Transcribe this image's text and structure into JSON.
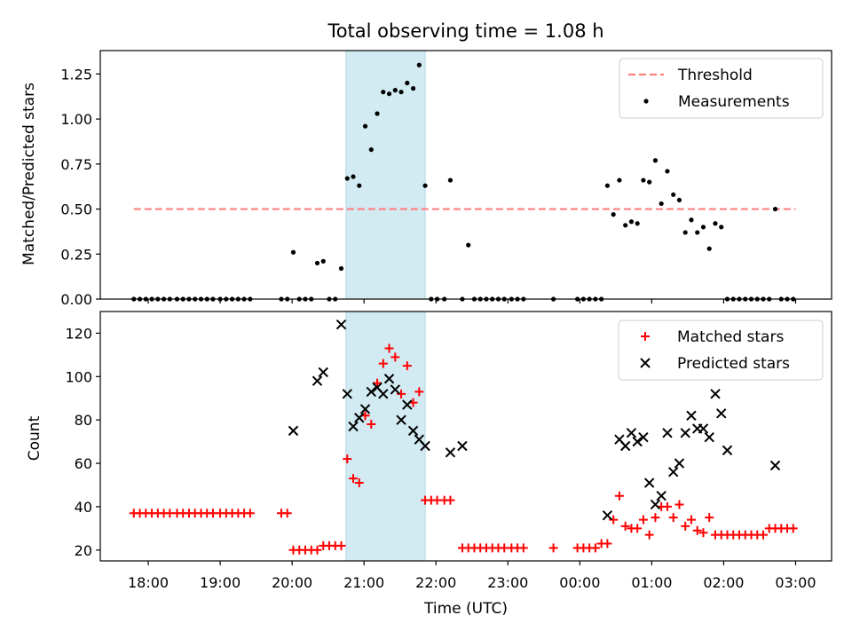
{
  "chart_data": [
    {
      "type": "scatter",
      "title": "Total observing time = 1.08 h",
      "xlabel": "",
      "ylabel": "Matched/Predicted stars",
      "xlim": [
        "17:20",
        "03:30"
      ],
      "ylim": [
        0,
        1.38
      ],
      "x_ticks": [
        "18:00",
        "19:00",
        "20:00",
        "21:00",
        "22:00",
        "23:00",
        "00:00",
        "01:00",
        "02:00",
        "03:00"
      ],
      "y_ticks": [
        "0.00",
        "0.25",
        "0.50",
        "0.75",
        "1.00",
        "1.25"
      ],
      "y_tick_values": [
        0,
        0.25,
        0.5,
        0.75,
        1.0,
        1.25
      ],
      "shaded_interval": {
        "start": "20:45",
        "end": "21:51",
        "color": "#add8e6"
      },
      "threshold": {
        "name": "Threshold",
        "value": 0.5,
        "x_start": "17:48",
        "x_end": "03:00",
        "color": "#ff7f7f",
        "style": "dashed"
      },
      "legend_position": "upper right",
      "series": [
        {
          "name": "Measurements",
          "color": "#000000",
          "marker": "dot",
          "x": [
            "17:48",
            "17:53",
            "17:58",
            "18:03",
            "18:08",
            "18:13",
            "18:18",
            "18:24",
            "18:29",
            "18:34",
            "18:39",
            "18:44",
            "18:49",
            "18:54",
            "19:00",
            "19:05",
            "19:10",
            "19:15",
            "19:20",
            "19:25",
            "19:51",
            "19:56",
            "20:01",
            "20:06",
            "20:11",
            "20:16",
            "20:21",
            "20:26",
            "20:31",
            "20:36",
            "20:41",
            "20:46",
            "20:51",
            "20:56",
            "21:01",
            "21:06",
            "21:11",
            "21:16",
            "21:21",
            "21:26",
            "21:31",
            "21:36",
            "21:41",
            "21:46",
            "21:51",
            "21:56",
            "22:01",
            "22:07",
            "22:12",
            "22:22",
            "22:27",
            "22:32",
            "22:37",
            "22:42",
            "22:47",
            "22:52",
            "22:57",
            "23:03",
            "23:08",
            "23:13",
            "23:38",
            "23:58",
            "00:03",
            "00:08",
            "00:13",
            "00:18",
            "00:23",
            "00:28",
            "00:33",
            "00:38",
            "00:43",
            "00:48",
            "00:53",
            "00:58",
            "01:03",
            "01:08",
            "01:13",
            "01:18",
            "01:23",
            "01:28",
            "01:33",
            "01:38",
            "01:43",
            "01:48",
            "01:53",
            "01:58",
            "02:03",
            "02:08",
            "02:13",
            "02:18",
            "02:23",
            "02:28",
            "02:33",
            "02:38",
            "02:43",
            "02:48",
            "02:53",
            "02:58"
          ],
          "y": [
            0,
            0,
            0,
            0,
            0,
            0,
            0,
            0,
            0,
            0,
            0,
            0,
            0,
            0,
            0,
            0,
            0,
            0,
            0,
            0,
            0,
            0,
            0.26,
            0,
            0,
            0,
            0.2,
            0.21,
            0,
            0,
            0.17,
            0.67,
            0.68,
            0.63,
            0.96,
            0.83,
            1.03,
            1.15,
            1.14,
            1.16,
            1.15,
            1.2,
            1.17,
            1.3,
            0.63,
            0,
            0,
            0,
            0.66,
            0,
            0.3,
            0,
            0,
            0,
            0,
            0,
            0,
            0,
            0,
            0,
            0,
            0,
            0,
            0,
            0,
            0,
            0.63,
            0.47,
            0.66,
            0.41,
            0.43,
            0.42,
            0.66,
            0.65,
            0.77,
            0.53,
            0.71,
            0.58,
            0.55,
            0.37,
            0.44,
            0.37,
            0.4,
            0.28,
            0.42,
            0.4,
            0,
            0,
            0,
            0,
            0,
            0,
            0,
            0,
            0.5,
            0,
            0,
            0
          ]
        }
      ]
    },
    {
      "type": "scatter",
      "title": "",
      "xlabel": "Time (UTC)",
      "ylabel": "Count",
      "xlim": [
        "17:20",
        "03:30"
      ],
      "ylim": [
        15,
        130
      ],
      "x_ticks": [
        "18:00",
        "19:00",
        "20:00",
        "21:00",
        "22:00",
        "23:00",
        "00:00",
        "01:00",
        "02:00",
        "03:00"
      ],
      "y_ticks": [
        "20",
        "40",
        "60",
        "80",
        "100",
        "120"
      ],
      "y_tick_values": [
        20,
        40,
        60,
        80,
        100,
        120
      ],
      "shaded_interval": {
        "start": "20:45",
        "end": "21:51",
        "color": "#add8e6"
      },
      "legend_position": "upper right",
      "series": [
        {
          "name": "Matched stars",
          "color": "#ff0000",
          "marker": "plus",
          "x": [
            "17:48",
            "17:53",
            "17:58",
            "18:03",
            "18:08",
            "18:13",
            "18:18",
            "18:24",
            "18:29",
            "18:34",
            "18:39",
            "18:44",
            "18:49",
            "18:54",
            "19:00",
            "19:05",
            "19:10",
            "19:15",
            "19:20",
            "19:25",
            "19:51",
            "19:56",
            "20:01",
            "20:06",
            "20:11",
            "20:16",
            "20:21",
            "20:26",
            "20:31",
            "20:36",
            "20:41",
            "20:46",
            "20:51",
            "20:56",
            "21:01",
            "21:06",
            "21:11",
            "21:16",
            "21:21",
            "21:26",
            "21:31",
            "21:36",
            "21:41",
            "21:46",
            "21:51",
            "21:56",
            "22:01",
            "22:07",
            "22:12",
            "22:22",
            "22:27",
            "22:32",
            "22:37",
            "22:42",
            "22:47",
            "22:52",
            "22:57",
            "23:03",
            "23:08",
            "23:13",
            "23:38",
            "23:58",
            "00:03",
            "00:08",
            "00:13",
            "00:18",
            "00:23",
            "00:28",
            "00:33",
            "00:38",
            "00:43",
            "00:48",
            "00:53",
            "00:58",
            "01:03",
            "01:08",
            "01:13",
            "01:18",
            "01:23",
            "01:28",
            "01:33",
            "01:38",
            "01:43",
            "01:48",
            "01:53",
            "01:58",
            "02:03",
            "02:08",
            "02:13",
            "02:18",
            "02:23",
            "02:28",
            "02:33",
            "02:38",
            "02:43",
            "02:48",
            "02:53",
            "02:58"
          ],
          "y": [
            37,
            37,
            37,
            37,
            37,
            37,
            37,
            37,
            37,
            37,
            37,
            37,
            37,
            37,
            37,
            37,
            37,
            37,
            37,
            37,
            37,
            37,
            20,
            20,
            20,
            20,
            20,
            22,
            22,
            22,
            22,
            62,
            53,
            51,
            82,
            78,
            97,
            106,
            113,
            109,
            92,
            105,
            88,
            93,
            43,
            43,
            43,
            43,
            43,
            21,
            21,
            21,
            21,
            21,
            21,
            21,
            21,
            21,
            21,
            21,
            21,
            21,
            21,
            21,
            21,
            23,
            23,
            34,
            45,
            31,
            30,
            30,
            34,
            27,
            35,
            40,
            40,
            35,
            41,
            31,
            34,
            29,
            28,
            35,
            27,
            27,
            27,
            27,
            27,
            27,
            27,
            27,
            27,
            30,
            30,
            30,
            30,
            30
          ]
        },
        {
          "name": "Predicted stars",
          "color": "#000000",
          "marker": "x",
          "x": [
            "20:01",
            "20:21",
            "20:26",
            "20:41",
            "20:46",
            "20:51",
            "20:56",
            "21:01",
            "21:06",
            "21:11",
            "21:16",
            "21:21",
            "21:26",
            "21:31",
            "21:36",
            "21:41",
            "21:46",
            "21:51",
            "22:12",
            "22:22",
            "00:23",
            "00:33",
            "00:38",
            "00:43",
            "00:48",
            "00:53",
            "00:58",
            "01:03",
            "01:08",
            "01:13",
            "01:18",
            "01:23",
            "01:28",
            "01:33",
            "01:38",
            "01:43",
            "01:48",
            "01:53",
            "01:58",
            "02:03",
            "02:43"
          ],
          "y": [
            75,
            98,
            102,
            124,
            92,
            77,
            81,
            85,
            93,
            95,
            92,
            99,
            94,
            80,
            87,
            75,
            71,
            68,
            65,
            68,
            36,
            71,
            68,
            74,
            70,
            72,
            51,
            41,
            45,
            74,
            56,
            60,
            74,
            82,
            76,
            76,
            72,
            92,
            83,
            66,
            59
          ]
        }
      ]
    }
  ]
}
